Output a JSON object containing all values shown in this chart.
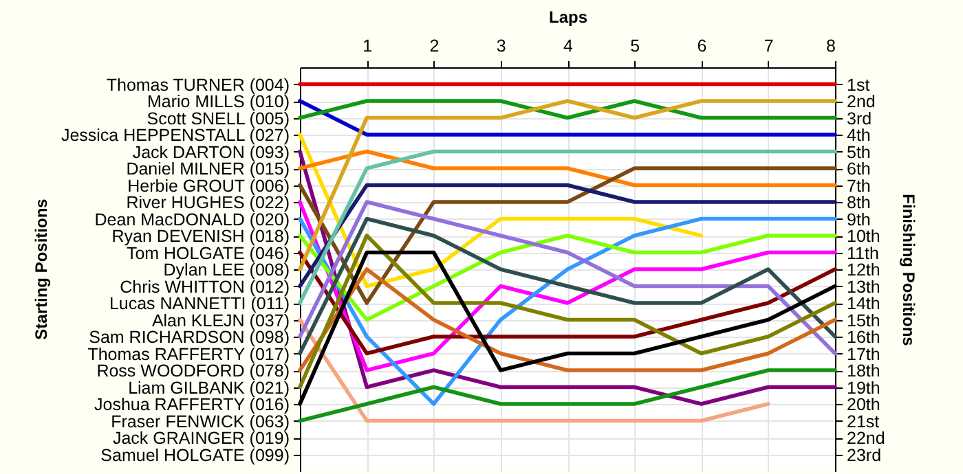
{
  "chart_data": {
    "type": "line",
    "xlabel": "Laps",
    "y2label": "Finishing Positions",
    "annotations": [
      "Starting Positions"
    ],
    "x": [
      0,
      1,
      2,
      3,
      4,
      5,
      6,
      7,
      8
    ],
    "xlim": [
      0,
      8
    ],
    "xticks": [
      1,
      2,
      3,
      4,
      5,
      6,
      7,
      8
    ],
    "y_categories": [
      "Thomas TURNER (004)",
      "Mario MILLS (010)",
      "Scott SNELL (005)",
      "Jessica HEPPENSTALL (027)",
      "Jack DARTON (093)",
      "Daniel MILNER (015)",
      "Herbie GROUT (006)",
      "River HUGHES (022)",
      "Dean MacDONALD (020)",
      "Ryan DEVENISH (018)",
      "Tom HOLGATE (046)",
      "Dylan LEE (008)",
      "Chris WHITTON (012)",
      "Lucas NANNETTI (011)",
      "Alan KLEJN (037)",
      "Sam RICHARDSON (098)",
      "Thomas RAFFERTY (017)",
      "Ross WOODFORD (078)",
      "Liam GILBANK (021)",
      "Joshua RAFFERTY (016)",
      "Fraser FENWICK (063)",
      "Jack GRAINGER (019)",
      "Samuel HOLGATE (099)"
    ],
    "y2lim": [
      24,
      0
    ],
    "y2ticks": [
      {
        "value": 1,
        "label": "1st"
      },
      {
        "value": 2,
        "label": "2nd"
      },
      {
        "value": 3,
        "label": "3rd"
      },
      {
        "value": 4,
        "label": "4th"
      },
      {
        "value": 5,
        "label": "5th"
      },
      {
        "value": 6,
        "label": "6th"
      },
      {
        "value": 7,
        "label": "7th"
      },
      {
        "value": 8,
        "label": "8th"
      },
      {
        "value": 9,
        "label": "9th"
      },
      {
        "value": 10,
        "label": "10th"
      },
      {
        "value": 11,
        "label": "11th"
      },
      {
        "value": 12,
        "label": "12th"
      },
      {
        "value": 13,
        "label": "13th"
      },
      {
        "value": 14,
        "label": "14th"
      },
      {
        "value": 15,
        "label": "15th"
      },
      {
        "value": 16,
        "label": "16th"
      },
      {
        "value": 17,
        "label": "17th"
      },
      {
        "value": 18,
        "label": "18th"
      },
      {
        "value": 19,
        "label": "19th"
      },
      {
        "value": 20,
        "label": "20th"
      },
      {
        "value": 21,
        "label": "21st"
      },
      {
        "value": 22,
        "label": "22nd"
      },
      {
        "value": 23,
        "label": "23rd"
      }
    ],
    "grid": true,
    "marker": "none",
    "line_style": "solid",
    "series": [
      {
        "axis": "y2",
        "color": "#e00000",
        "values": [
          1,
          1,
          1,
          1,
          1,
          1,
          1,
          1,
          1
        ]
      },
      {
        "axis": "y2",
        "color": "#0000cc",
        "values": [
          2,
          4,
          4,
          4,
          4,
          4,
          4,
          4,
          4
        ]
      },
      {
        "axis": "y2",
        "color": "#119911",
        "values": [
          3,
          2,
          2,
          2,
          3,
          2,
          3,
          3,
          3
        ]
      },
      {
        "axis": "y2",
        "color": "#ffdd00",
        "values": [
          4,
          13,
          12,
          9,
          9,
          9,
          10,
          null,
          null
        ]
      },
      {
        "axis": "y2",
        "color": "#800080",
        "values": [
          5,
          19,
          18,
          19,
          19,
          19,
          20,
          19,
          19
        ]
      },
      {
        "axis": "y2",
        "color": "#ff8000",
        "values": [
          6,
          5,
          6,
          6,
          6,
          7,
          7,
          7,
          7
        ]
      },
      {
        "axis": "y2",
        "color": "#7b4a12",
        "values": [
          7,
          14,
          8,
          8,
          8,
          6,
          6,
          6,
          6
        ]
      },
      {
        "axis": "y2",
        "color": "#ff00ff",
        "values": [
          8,
          18,
          17,
          13,
          14,
          12,
          12,
          11,
          11
        ]
      },
      {
        "axis": "y2",
        "color": "#3399ff",
        "values": [
          9,
          16,
          20,
          15,
          12,
          10,
          9,
          9,
          9
        ]
      },
      {
        "axis": "y2",
        "color": "#80ff00",
        "values": [
          10,
          15,
          13,
          11,
          10,
          11,
          11,
          10,
          10
        ]
      },
      {
        "axis": "y2",
        "color": "#800000",
        "values": [
          11,
          17,
          16,
          16,
          16,
          16,
          15,
          14,
          12
        ]
      },
      {
        "axis": "y2",
        "color": "#daa520",
        "values": [
          12,
          3,
          3,
          3,
          2,
          3,
          2,
          2,
          2
        ]
      },
      {
        "axis": "y2",
        "color": "#1a1a6e",
        "values": [
          13,
          7,
          7,
          7,
          7,
          8,
          8,
          8,
          8
        ]
      },
      {
        "axis": "y2",
        "color": "#66c2a5",
        "values": [
          14,
          6,
          5,
          5,
          5,
          5,
          5,
          5,
          5
        ]
      },
      {
        "axis": "y2",
        "color": "#f4a582",
        "values": [
          15,
          21,
          21,
          21,
          21,
          21,
          21,
          20,
          null
        ]
      },
      {
        "axis": "y2",
        "color": "#9370db",
        "values": [
          16,
          8,
          9,
          10,
          11,
          13,
          13,
          13,
          17
        ]
      },
      {
        "axis": "y2",
        "color": "#2f4f4f",
        "values": [
          17,
          9,
          10,
          12,
          13,
          14,
          14,
          12,
          16
        ]
      },
      {
        "axis": "y2",
        "color": "#d2691e",
        "values": [
          18,
          12,
          15,
          17,
          18,
          18,
          18,
          17,
          15
        ]
      },
      {
        "axis": "y2",
        "color": "#808000",
        "values": [
          19,
          10,
          14,
          14,
          15,
          15,
          17,
          16,
          14
        ]
      },
      {
        "axis": "y2",
        "color": "#000000",
        "values": [
          20,
          11,
          11,
          18,
          17,
          17,
          16,
          15,
          13
        ]
      },
      {
        "axis": "y2",
        "color": "#149414",
        "values": [
          21,
          20,
          19,
          20,
          20,
          20,
          19,
          18,
          18
        ]
      }
    ]
  }
}
